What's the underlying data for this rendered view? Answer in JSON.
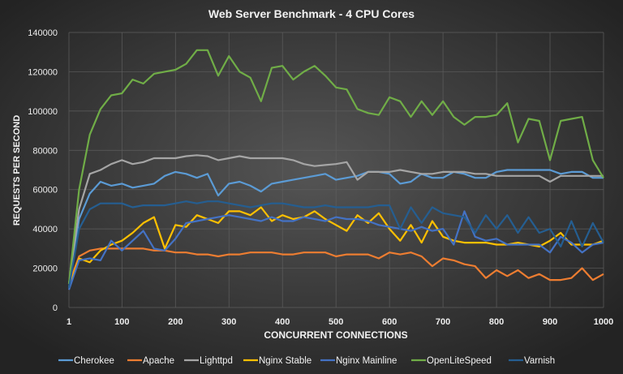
{
  "chart_data": {
    "type": "line",
    "title": "Web Server Benchmark - 4 CPU Cores",
    "xlabel": "CONCURRENT CONNECTIONS",
    "ylabel": "REQUESTS PER SECOND",
    "xlim": [
      1,
      1000
    ],
    "ylim": [
      0,
      140000
    ],
    "xticks": [
      1,
      100,
      200,
      300,
      400,
      500,
      600,
      700,
      800,
      900,
      1000
    ],
    "yticks": [
      0,
      20000,
      40000,
      60000,
      80000,
      100000,
      120000,
      140000
    ],
    "grid": true,
    "legend": "bottom",
    "x": [
      1,
      20,
      40,
      60,
      80,
      100,
      120,
      140,
      160,
      180,
      200,
      220,
      240,
      260,
      280,
      300,
      320,
      340,
      360,
      380,
      400,
      420,
      440,
      460,
      480,
      500,
      520,
      540,
      560,
      580,
      600,
      620,
      640,
      660,
      680,
      700,
      720,
      740,
      760,
      780,
      800,
      820,
      840,
      860,
      880,
      900,
      920,
      940,
      960,
      980,
      1000
    ],
    "series": [
      {
        "name": "Cherokee",
        "color": "#5b9bd5",
        "values": [
          10000,
          45000,
          58000,
          64000,
          62000,
          63000,
          61000,
          62000,
          63000,
          67000,
          69000,
          68000,
          66000,
          68000,
          57000,
          63000,
          64000,
          62000,
          59000,
          63000,
          64000,
          65000,
          66000,
          67000,
          68000,
          65000,
          66000,
          67000,
          69000,
          69000,
          68000,
          63000,
          64000,
          68000,
          66000,
          66000,
          69000,
          68000,
          66000,
          66000,
          69000,
          70000,
          70000,
          70000,
          70000,
          70000,
          68000,
          69000,
          69000,
          66000,
          66000
        ]
      },
      {
        "name": "Apache",
        "color": "#ed7d31",
        "values": [
          12000,
          26000,
          29000,
          30000,
          30000,
          30000,
          30000,
          30000,
          29000,
          29000,
          28000,
          28000,
          27000,
          27000,
          26000,
          27000,
          27000,
          28000,
          28000,
          28000,
          27000,
          27000,
          28000,
          28000,
          28000,
          26000,
          27000,
          27000,
          27000,
          25000,
          28000,
          27000,
          28000,
          26000,
          21000,
          25000,
          24000,
          22000,
          21000,
          15000,
          19000,
          16000,
          19000,
          15000,
          17000,
          14000,
          14000,
          15000,
          20000,
          14000,
          17000
        ]
      },
      {
        "name": "Lighttpd",
        "color": "#a5a5a5",
        "values": [
          12000,
          50000,
          68000,
          70000,
          73000,
          75000,
          73000,
          74000,
          76000,
          76000,
          76000,
          77000,
          77500,
          77000,
          75000,
          76000,
          77000,
          76000,
          76000,
          76000,
          76000,
          75000,
          73000,
          72000,
          72500,
          73000,
          74000,
          65000,
          69000,
          69000,
          69000,
          70000,
          69000,
          68000,
          68000,
          69000,
          69000,
          69000,
          68000,
          68000,
          67000,
          67000,
          67000,
          67000,
          67000,
          64000,
          67000,
          67000,
          67000,
          67000,
          67000
        ]
      },
      {
        "name": "Nginx Stable",
        "color": "#ffc000",
        "values": [
          10000,
          25000,
          23000,
          29000,
          32000,
          34000,
          38000,
          43000,
          46000,
          30000,
          42000,
          41000,
          47000,
          45000,
          43000,
          49000,
          49000,
          47000,
          51000,
          44000,
          47000,
          45000,
          46000,
          49000,
          45000,
          42000,
          39000,
          47000,
          43000,
          48000,
          40000,
          34000,
          42000,
          33000,
          44000,
          36000,
          34000,
          33000,
          33000,
          33000,
          32000,
          32000,
          33000,
          32000,
          31000,
          34000,
          38000,
          32000,
          32000,
          32000,
          34000
        ]
      },
      {
        "name": "Nginx Mainline",
        "color": "#4472c4",
        "values": [
          9000,
          24000,
          25000,
          24000,
          34000,
          29000,
          34000,
          39000,
          30000,
          29000,
          35000,
          43000,
          44000,
          45000,
          46000,
          47000,
          46000,
          45000,
          44000,
          46000,
          44000,
          44000,
          46000,
          45000,
          44000,
          46000,
          45000,
          45000,
          44000,
          42000,
          41000,
          40000,
          39000,
          41000,
          39000,
          40000,
          32000,
          49000,
          36000,
          34000,
          35000,
          32000,
          32000,
          32000,
          32000,
          28000,
          36000,
          33000,
          28000,
          32000,
          33000
        ]
      },
      {
        "name": "OpenLiteSpeed",
        "color": "#70ad47",
        "values": [
          12000,
          60000,
          88000,
          101000,
          108000,
          109000,
          116000,
          114000,
          119000,
          120000,
          121000,
          124000,
          131000,
          131000,
          118000,
          128000,
          120000,
          117000,
          105000,
          122000,
          123000,
          116000,
          120000,
          123000,
          118000,
          112000,
          111000,
          101000,
          99000,
          98000,
          107000,
          105000,
          97000,
          105000,
          98000,
          105000,
          97000,
          93000,
          97000,
          97000,
          98000,
          104000,
          84000,
          96000,
          95000,
          75000,
          95000,
          96000,
          97000,
          75000,
          66000
        ]
      },
      {
        "name": "Varnish",
        "color": "#255e91",
        "values": [
          10000,
          40000,
          50000,
          53000,
          53000,
          53000,
          51000,
          52000,
          52000,
          52000,
          53000,
          54000,
          53000,
          54000,
          54000,
          53000,
          52000,
          51000,
          52000,
          53000,
          53000,
          52000,
          51000,
          51000,
          52000,
          51000,
          51000,
          51000,
          51000,
          52000,
          52000,
          40000,
          51000,
          43000,
          51000,
          48000,
          47000,
          46000,
          38000,
          47000,
          40000,
          47000,
          38000,
          46000,
          38000,
          40000,
          31000,
          44000,
          31000,
          43000,
          33000
        ]
      }
    ]
  }
}
